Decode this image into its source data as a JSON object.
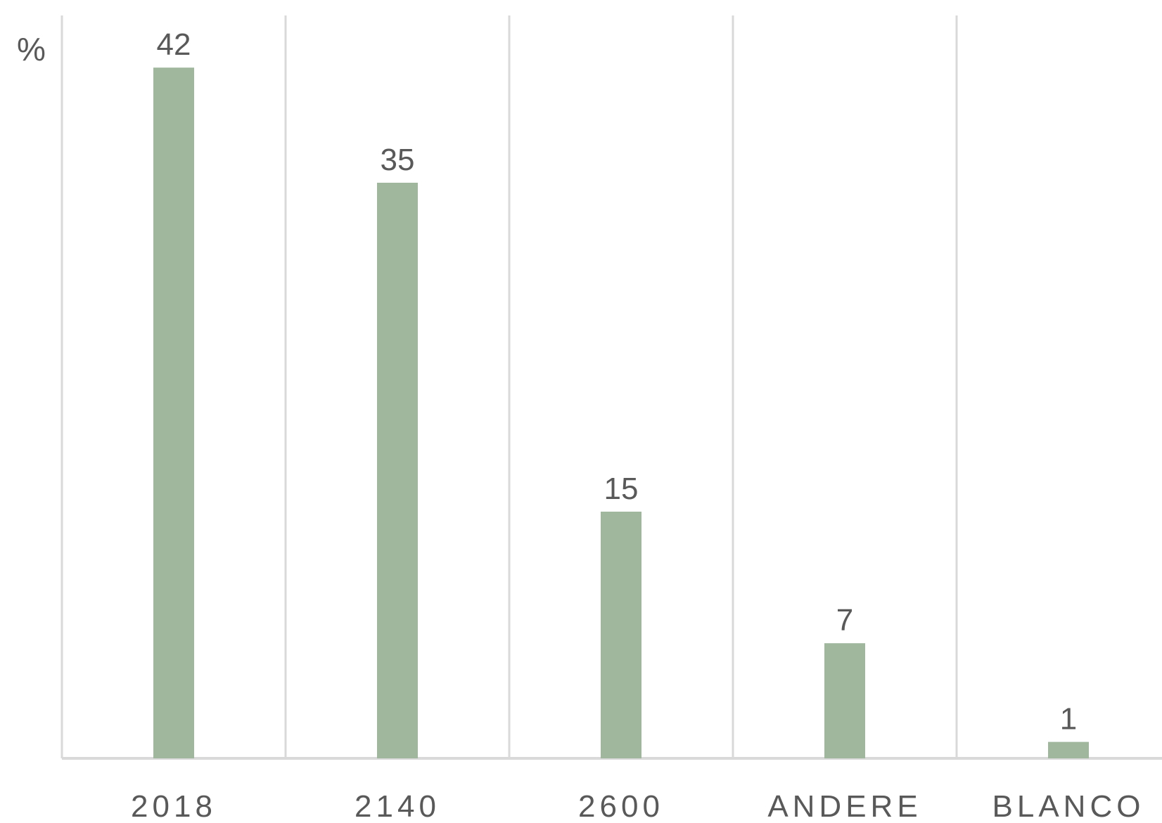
{
  "chart_data": {
    "type": "bar",
    "ylabel": "%",
    "categories": [
      "2018",
      "2140",
      "2600",
      "ANDERE",
      "BLANCO"
    ],
    "values": [
      42,
      35,
      15,
      7,
      1
    ],
    "data_labels": [
      "42",
      "35",
      "15",
      "7",
      "1"
    ],
    "ylim": [
      0,
      45
    ],
    "grid": "vertical",
    "legend": "none",
    "bar_color": "#a0b79d"
  }
}
